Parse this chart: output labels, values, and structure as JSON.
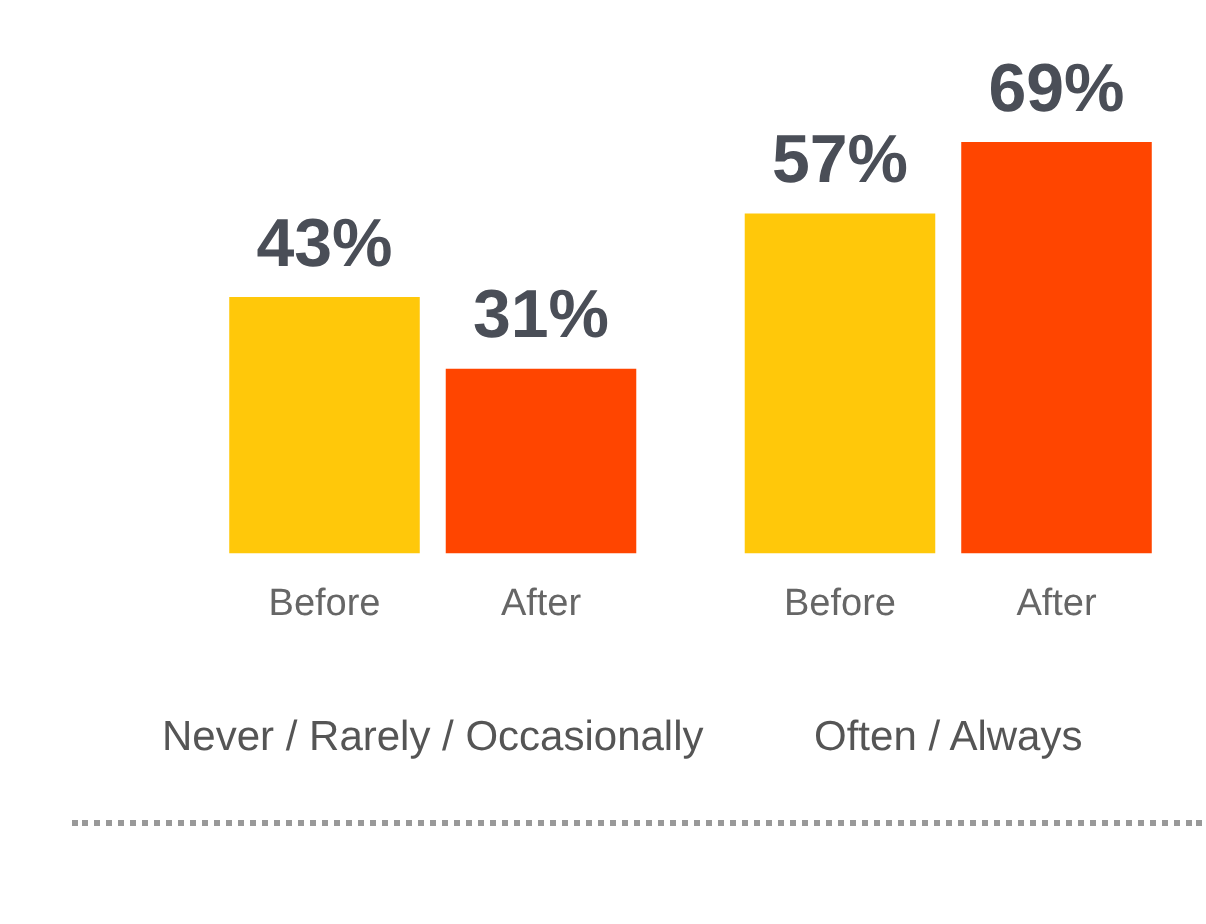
{
  "chart_data": {
    "type": "bar",
    "categories": [
      "Never / Rarely / Occasionally",
      "Often / Always"
    ],
    "series": [
      {
        "name": "Before",
        "color": "#ffc80a",
        "values": [
          43,
          57
        ],
        "value_labels": [
          "43%",
          "57%"
        ]
      },
      {
        "name": "After",
        "color": "#ff4500",
        "values": [
          31,
          69
        ],
        "value_labels": [
          "31%",
          "69%"
        ]
      }
    ],
    "legend": false,
    "grid": false
  }
}
